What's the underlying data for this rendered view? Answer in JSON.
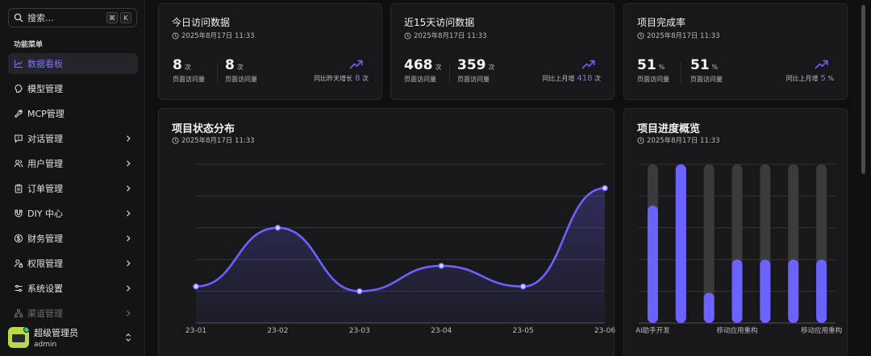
{
  "sidebar": {
    "search_placeholder": "搜索...",
    "shortcut_mod": "⌘",
    "shortcut_key": "K",
    "section_title": "功能菜单",
    "items": [
      {
        "label": "数据看板",
        "icon": "chart-line-icon",
        "active": true,
        "chevron": false
      },
      {
        "label": "模型管理",
        "icon": "brain-icon",
        "active": false,
        "chevron": false
      },
      {
        "label": "MCP管理",
        "icon": "wrench-icon",
        "active": false,
        "chevron": false
      },
      {
        "label": "对话管理",
        "icon": "message-icon",
        "active": false,
        "chevron": true
      },
      {
        "label": "用户管理",
        "icon": "users-icon",
        "active": false,
        "chevron": true
      },
      {
        "label": "订单管理",
        "icon": "clipboard-icon",
        "active": false,
        "chevron": true
      },
      {
        "label": "DIY 中心",
        "icon": "magnet-icon",
        "active": false,
        "chevron": true
      },
      {
        "label": "财务管理",
        "icon": "dollar-icon",
        "active": false,
        "chevron": true
      },
      {
        "label": "权限管理",
        "icon": "user-lock-icon",
        "active": false,
        "chevron": true
      },
      {
        "label": "系统设置",
        "icon": "sliders-icon",
        "active": false,
        "chevron": true
      },
      {
        "label": "渠道管理",
        "icon": "network-icon",
        "active": false,
        "chevron": true
      }
    ],
    "user": {
      "name": "超级管理员",
      "role": "admin"
    }
  },
  "cards": {
    "today": {
      "title": "今日访问数据",
      "date": "2025年8月17日 11:33",
      "stat1": {
        "value": "8",
        "unit": "次",
        "label": "页面访问量"
      },
      "stat2": {
        "value": "8",
        "unit": "次",
        "label": "页面访问量"
      },
      "trend_text": "同比昨天增长",
      "trend_value": "8",
      "trend_unit": "次"
    },
    "fifteen": {
      "title": "近15天访问数据",
      "date": "2025年8月17日 11:33",
      "stat1": {
        "value": "468",
        "unit": "次",
        "label": "页面访问量"
      },
      "stat2": {
        "value": "359",
        "unit": "次",
        "label": "页面访问量"
      },
      "trend_text": "同比上月增",
      "trend_value": "418",
      "trend_unit": "次"
    },
    "completion": {
      "title": "项目完成率",
      "date": "2025年8月17日 11:33",
      "stat1": {
        "value": "51",
        "unit": "%",
        "label": "页面访问量"
      },
      "stat2": {
        "value": "51",
        "unit": "%",
        "label": "页面访问量"
      },
      "trend_text": "同比上月增",
      "trend_value": "5",
      "trend_unit": "%"
    },
    "status": {
      "title": "项目状态分布",
      "date": "2025年8月17日 11:33"
    },
    "progress": {
      "title": "项目进度概览",
      "date": "2025年8月17日 11:33"
    }
  },
  "colors": {
    "accent": "#6c63ff",
    "track": "#3b3b3e"
  },
  "chart_data": [
    {
      "type": "area",
      "x": [
        "23-01",
        "23-02",
        "23-03",
        "23-04",
        "23-05",
        "23-06"
      ],
      "values": [
        23,
        60,
        20,
        36,
        23,
        85
      ],
      "ylim": [
        0,
        100
      ],
      "grid": true,
      "smooth": true
    },
    {
      "type": "bar",
      "categories": [
        "AI助手开发",
        "",
        "",
        "移动应用重构",
        "",
        "",
        "移动应用重构"
      ],
      "values": [
        74,
        100,
        19,
        40,
        40,
        40,
        40
      ],
      "ylim": [
        0,
        100
      ],
      "grid": true
    }
  ]
}
